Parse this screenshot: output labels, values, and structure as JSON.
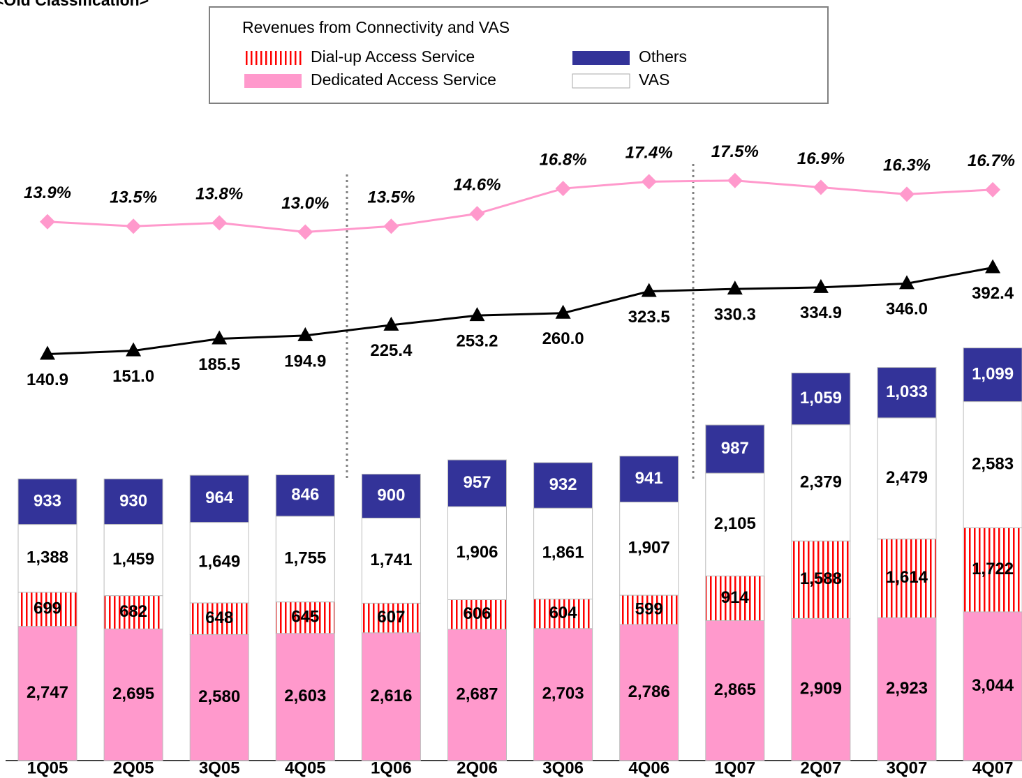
{
  "chart_data": {
    "type": "stacked_bar_line",
    "title": "<Old Classification>",
    "legend_title": "Revenues from Connectivity and VAS",
    "categories": [
      "1Q05",
      "2Q05",
      "3Q05",
      "4Q05",
      "1Q06",
      "2Q06",
      "3Q06",
      "4Q06",
      "1Q07",
      "2Q07",
      "3Q07",
      "4Q07"
    ],
    "ylim": [
      0,
      13000
    ],
    "series": [
      {
        "name": "Dedicated Access Service",
        "color": "#ff99cc",
        "values": [
          2747,
          2695,
          2580,
          2603,
          2616,
          2687,
          2703,
          2786,
          2865,
          2909,
          2923,
          3044
        ],
        "value_labels": [
          "2,747",
          "2,695",
          "2,580",
          "2,603",
          "2,616",
          "2,687",
          "2,703",
          "2,786",
          "2,865",
          "2,909",
          "2,923",
          "3,044"
        ]
      },
      {
        "name": "Dial-up Access Service",
        "color": "#ff0000",
        "pattern": "vertical-stripes",
        "values": [
          699,
          682,
          648,
          645,
          607,
          606,
          604,
          599,
          914,
          1588,
          1614,
          1722
        ],
        "value_labels": [
          "699",
          "682",
          "648",
          "645",
          "607",
          "606",
          "604",
          "599",
          "914",
          "1,588",
          "1,614",
          "1,722"
        ]
      },
      {
        "name": "VAS",
        "color": "#ffffff",
        "values": [
          1388,
          1459,
          1649,
          1755,
          1741,
          1906,
          1861,
          1907,
          2105,
          2379,
          2479,
          2583
        ],
        "value_labels": [
          "1,388",
          "1,459",
          "1,649",
          "1,755",
          "1,741",
          "1,906",
          "1,861",
          "1,907",
          "2,105",
          "2,379",
          "2,479",
          "2,583"
        ]
      },
      {
        "name": "Others",
        "color": "#333399",
        "values": [
          933,
          930,
          964,
          846,
          900,
          957,
          932,
          941,
          987,
          1059,
          1033,
          1099
        ],
        "value_labels": [
          "933",
          "930",
          "964",
          "846",
          "900",
          "957",
          "932",
          "941",
          "987",
          "1,059",
          "1,033",
          "1,099"
        ]
      }
    ],
    "y2lim": [
      -1040,
      805
    ],
    "y3lim": [
      -33.2,
      22.3
    ],
    "lines": [
      {
        "axis": "y2",
        "color": "#000000",
        "marker": "triangle",
        "values": [
          140.9,
          151.0,
          185.5,
          194.9,
          225.4,
          253.2,
          260.0,
          323.5,
          330.3,
          334.9,
          346.0,
          392.4
        ],
        "value_labels": [
          "140.9",
          "151.0",
          "185.5",
          "194.9",
          "225.4",
          "253.2",
          "260.0",
          "323.5",
          "330.3",
          "334.9",
          "346.0",
          "392.4"
        ]
      },
      {
        "axis": "y3",
        "color": "#ff99cc",
        "marker": "diamond",
        "values": [
          13.9,
          13.5,
          13.8,
          13.0,
          13.5,
          14.6,
          16.8,
          17.4,
          17.5,
          16.9,
          16.3,
          16.7
        ],
        "value_labels": [
          "13.9%",
          "13.5%",
          "13.8%",
          "13.0%",
          "13.5%",
          "14.6%",
          "16.8%",
          "17.4%",
          "17.5%",
          "16.9%",
          "16.3%",
          "16.7%"
        ]
      }
    ]
  }
}
